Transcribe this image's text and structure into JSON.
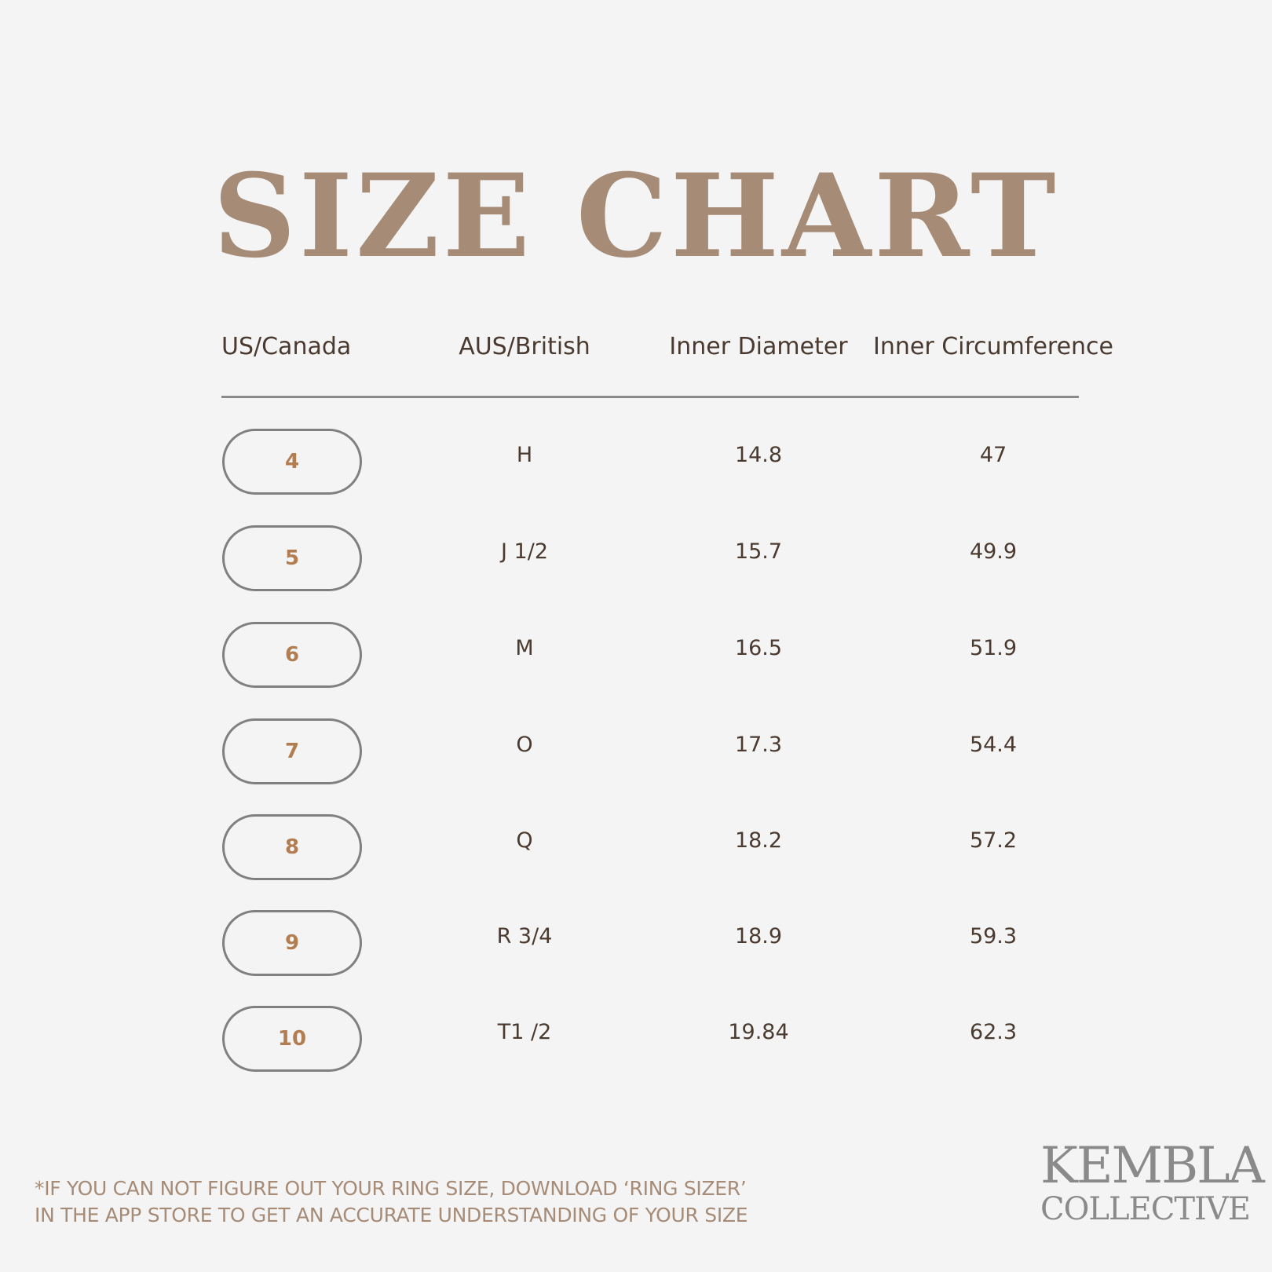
{
  "title": "SIZE CHART",
  "table": {
    "headers": [
      "US/Canada",
      "AUS/British",
      "Inner Diameter",
      "Inner Circumference"
    ],
    "rows": [
      {
        "us": "4",
        "aus": "H",
        "diameter": "14.8",
        "circumference": "47"
      },
      {
        "us": "5",
        "aus": "J 1/2",
        "diameter": "15.7",
        "circumference": "49.9"
      },
      {
        "us": "6",
        "aus": "M",
        "diameter": "16.5",
        "circumference": "51.9"
      },
      {
        "us": "7",
        "aus": "O",
        "diameter": "17.3",
        "circumference": "54.4"
      },
      {
        "us": "8",
        "aus": "Q",
        "diameter": "18.2",
        "circumference": "57.2"
      },
      {
        "us": "9",
        "aus": "R 3/4",
        "diameter": "18.9",
        "circumference": "59.3"
      },
      {
        "us": "10",
        "aus": "T1 /2",
        "diameter": "19.84",
        "circumference": "62.3"
      }
    ]
  },
  "footer": {
    "note_line1": "*IF YOU CAN NOT FIGURE OUT YOUR RING SIZE, DOWNLOAD ‘RING SIZER’",
    "note_line2": "IN THE APP STORE TO GET AN ACCURATE UNDERSTANDING OF YOUR SIZE"
  },
  "logo": {
    "line1": "KEMBLA",
    "line2": "COLLECTIVE"
  },
  "colors": {
    "accent": "#a68b77",
    "pill_text": "#b27d50",
    "text": "#4a3a30",
    "background": "#f4f4f4"
  }
}
